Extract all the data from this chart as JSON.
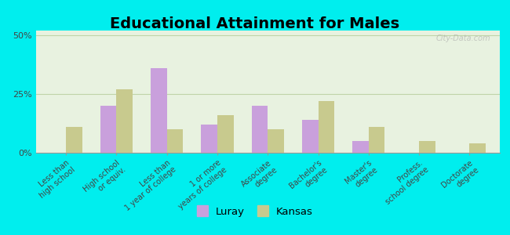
{
  "title": "Educational Attainment for Males",
  "categories": [
    "Less than\nhigh school",
    "High school\nor equiv.",
    "Less than\n1 year of college",
    "1 or more\nyears of college",
    "Associate\ndegree",
    "Bachelor's\ndegree",
    "Master's\ndegree",
    "Profess.\nschool degree",
    "Doctorate\ndegree"
  ],
  "luray": [
    0,
    20,
    36,
    12,
    20,
    14,
    5,
    0,
    0
  ],
  "kansas": [
    11,
    27,
    10,
    16,
    10,
    22,
    11,
    5,
    4
  ],
  "luray_color": "#c9a0dc",
  "kansas_color": "#c8ca8e",
  "bg_outer": "#00eeee",
  "bg_plot": "#e8f2e0",
  "grid_color": "#c0d4a8",
  "yticks": [
    0,
    25,
    50
  ],
  "ylim": [
    0,
    52
  ],
  "legend_luray": "Luray",
  "legend_kansas": "Kansas",
  "title_fontsize": 14,
  "tick_fontsize": 7
}
